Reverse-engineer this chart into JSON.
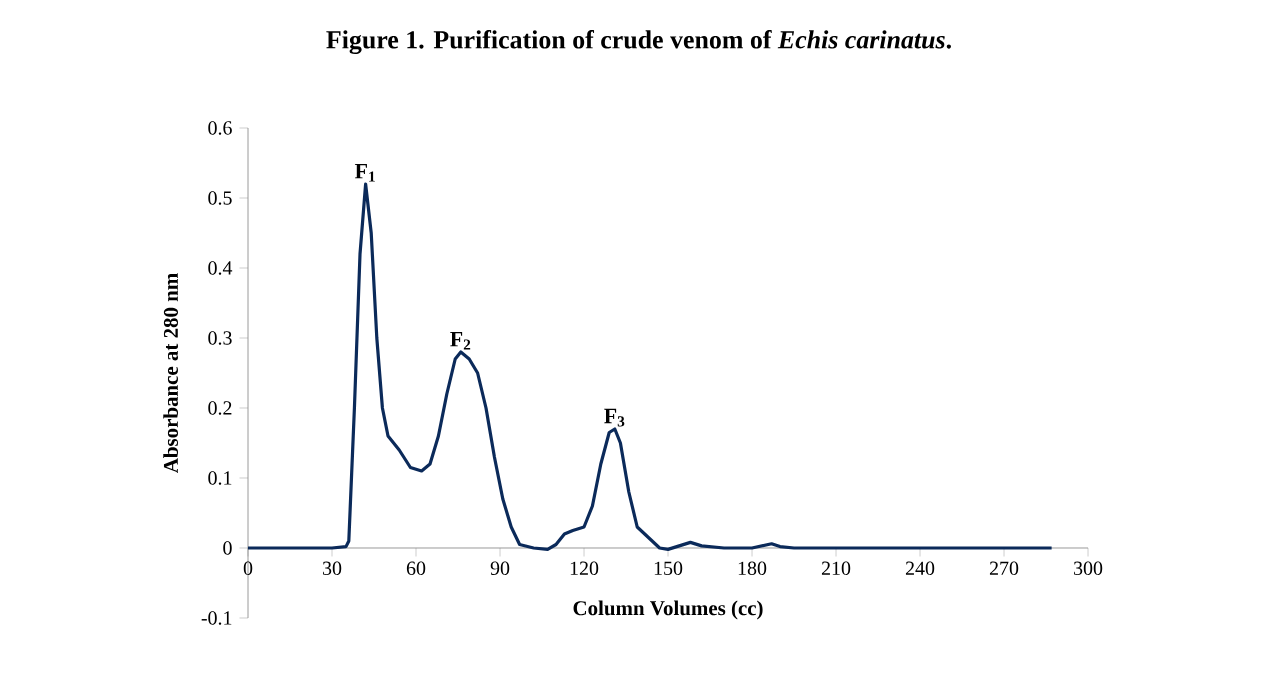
{
  "chart_data": {
    "type": "line",
    "title": "Figure 1. Purification of crude venom of *Echis carinatus*.",
    "xlabel": "Column Volumes (cc)",
    "ylabel": "Absorbance at 280 nm",
    "x": [
      0,
      30,
      35,
      36,
      38,
      40,
      42,
      44,
      46,
      48,
      50,
      54,
      58,
      62,
      65,
      68,
      71,
      74,
      76,
      79,
      82,
      85,
      88,
      91,
      94,
      97,
      102,
      107,
      110,
      113,
      116,
      120,
      123,
      126,
      129,
      131,
      133,
      136,
      139,
      143,
      147,
      150,
      154,
      158,
      162,
      170,
      180,
      187,
      190,
      195,
      287
    ],
    "series": [
      {
        "color": "#0b2a5a",
        "values": [
          0,
          0,
          0.002,
          0.01,
          0.2,
          0.42,
          0.52,
          0.45,
          0.3,
          0.2,
          0.16,
          0.14,
          0.115,
          0.11,
          0.12,
          0.16,
          0.22,
          0.27,
          0.28,
          0.27,
          0.25,
          0.2,
          0.13,
          0.07,
          0.03,
          0.005,
          0,
          -0.002,
          0.005,
          0.02,
          0.025,
          0.03,
          0.06,
          0.12,
          0.165,
          0.17,
          0.15,
          0.08,
          0.03,
          0.015,
          0,
          -0.002,
          0.003,
          0.008,
          0.003,
          0,
          0,
          0.006,
          0.002,
          0,
          0
        ]
      }
    ],
    "annotations": [
      {
        "text": "F$_{1}$",
        "x": 42,
        "y": 0.52
      },
      {
        "text": "F$_{2}$",
        "x": 76,
        "y": 0.28
      },
      {
        "text": "F$_{3}$",
        "x": 131,
        "y": 0.17
      }
    ],
    "xlim": [
      0,
      300
    ],
    "ylim": [
      -0.1,
      0.6
    ],
    "xticks": [
      0,
      30,
      60,
      90,
      120,
      150,
      180,
      210,
      240,
      270,
      300
    ],
    "yticks": [
      -0.1,
      0,
      0.1,
      0.2,
      0.3,
      0.4,
      0.5,
      0.6
    ],
    "grid": false,
    "marker": "none",
    "line_style": "solid"
  }
}
